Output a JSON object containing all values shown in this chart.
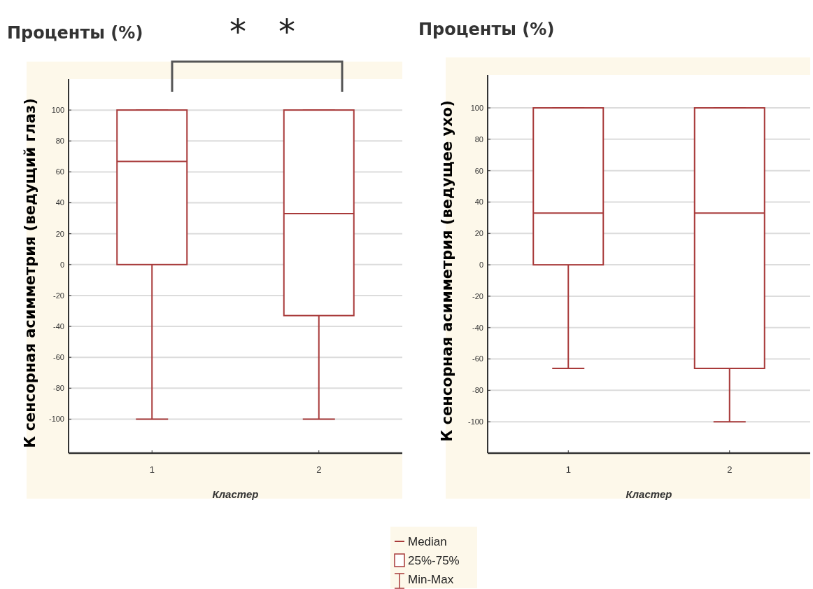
{
  "chart_data": [
    {
      "type": "box",
      "title": "Проценты (%)",
      "xlabel": "Кластер",
      "ylabel": "К сенсорная  асимметрия (ведущий глаз)",
      "categories": [
        "1",
        "2"
      ],
      "color": "#a83a3a",
      "boxes": [
        {
          "low": -100,
          "q1": 0,
          "median": 66.7,
          "q3": 100,
          "high": 100
        },
        {
          "low": -100,
          "q1": -33,
          "median": 33,
          "q3": 100,
          "high": 100
        }
      ],
      "ylim": [
        -122,
        120
      ],
      "yticks": [
        -100,
        -80,
        -60,
        -40,
        -20,
        0,
        20,
        40,
        60,
        80,
        100
      ],
      "grid": "y",
      "annotations": [
        "*",
        "*"
      ]
    },
    {
      "type": "box",
      "title": "Проценты (%)",
      "xlabel": "Кластер",
      "ylabel": "К сенсорная  асимметрия (ведущее ухо)",
      "categories": [
        "1",
        "2"
      ],
      "color": "#a83a3a",
      "boxes": [
        {
          "low": -66,
          "q1": 0,
          "median": 33,
          "q3": 100,
          "high": 100
        },
        {
          "low": -100,
          "q1": -66,
          "median": 33,
          "q3": 100,
          "high": 100
        }
      ],
      "ylim": [
        -120,
        121
      ],
      "yticks": [
        -100,
        -80,
        -60,
        -40,
        -20,
        0,
        20,
        40,
        60,
        80,
        100
      ],
      "grid": "y",
      "annotations": [
        "Median",
        "25%-75%",
        "Min-Max"
      ]
    }
  ]
}
